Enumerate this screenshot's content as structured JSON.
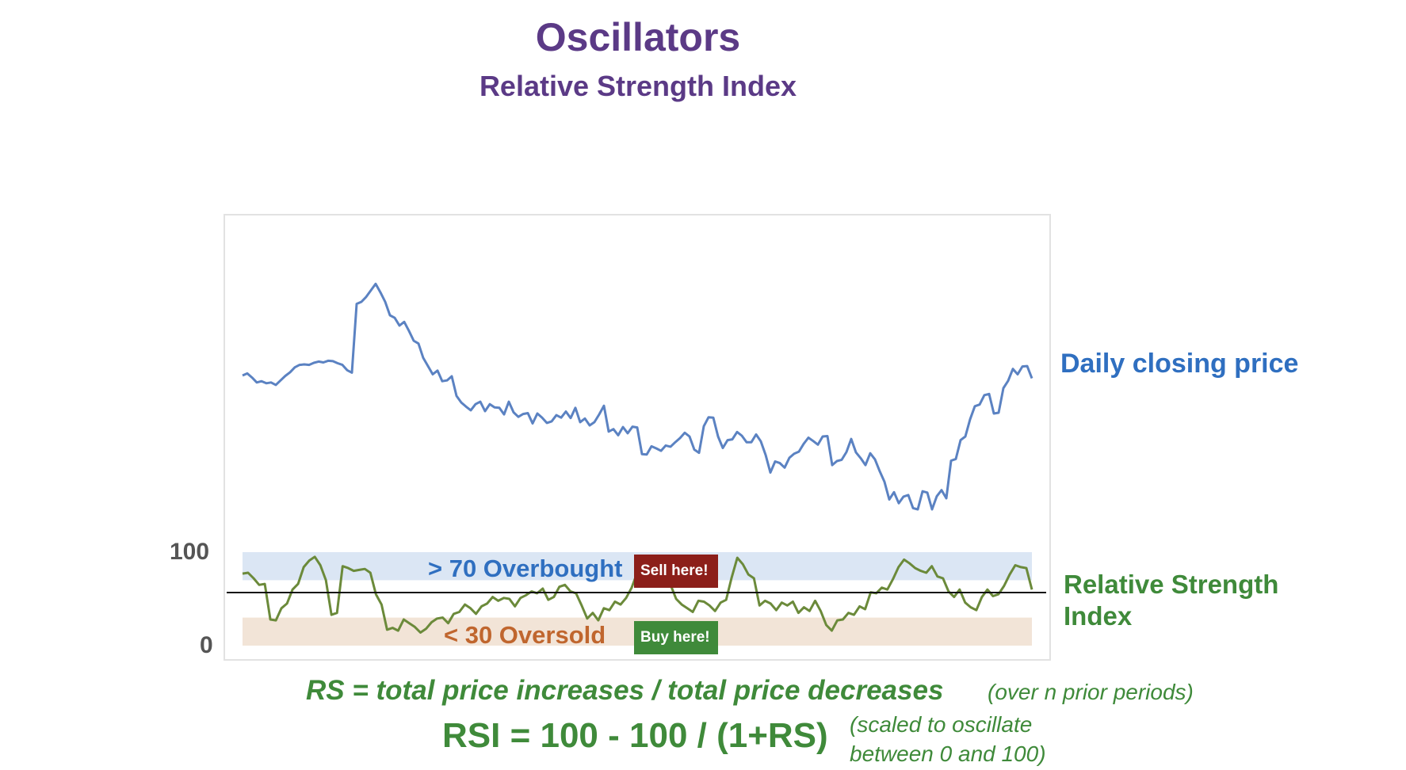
{
  "title": "Oscillators",
  "subtitle": "Relative Strength Index",
  "labels": {
    "price_series": "Daily closing price",
    "rsi_series": "Relative Strength Index",
    "rsi_tick_high": "100",
    "rsi_tick_low": "0",
    "overbought": "> 70 Overbought",
    "oversold": "< 30 Oversold",
    "sell": "Sell here!",
    "buy": "Buy here!"
  },
  "formulas": {
    "rs": "RS = total price increases / total price decreases",
    "rs_note": "(over n prior periods)",
    "rsi": "RSI = 100 - 100 / (1+RS)",
    "rsi_note_line1": "(scaled to oscillate",
    "rsi_note_line2": "between 0 and 100)"
  },
  "colors": {
    "title": "#5b3a86",
    "price_line": "#5b82c2",
    "rsi_line": "#6b8a3a",
    "overbought_band": "#dbe6f4",
    "oversold_band": "#f2e4d7",
    "sell_badge": "#8c1f1a",
    "buy_badge": "#3f8a3a"
  },
  "chart_data": [
    {
      "type": "line",
      "series": [
        {
          "name": "Daily closing price",
          "values": [
            66,
            66.5,
            65.5,
            64.3,
            64.6,
            64.1,
            64.3,
            63.7,
            64.8,
            65.9,
            66.8,
            68,
            68.6,
            68.7,
            68.6,
            69.1,
            69.4,
            69.2,
            69.6,
            69.5,
            69,
            68.6,
            67.3,
            66.7,
            83.5,
            84,
            85.2,
            86.8,
            88.4,
            86.3,
            84,
            80.7,
            80.1,
            78.2,
            79.1,
            76.9,
            74.5,
            73.8,
            70.3,
            68.3,
            66.3,
            67.2,
            64.6,
            64.8,
            65.8,
            61,
            59.4,
            58.4,
            57.5,
            59,
            59.6,
            57.3,
            59,
            58.2,
            58.1,
            56.5,
            59.6,
            57,
            55.9,
            56.6,
            56.8,
            54.3,
            56.7,
            55.7,
            54.4,
            54.8,
            56.3,
            55.7,
            57.2,
            55.6,
            58.1,
            54.6,
            55.5,
            53.8,
            54.6,
            56.5,
            58.6,
            52.3,
            52.9,
            51.4,
            53.4,
            51.9,
            53.5,
            53.3,
            46.8,
            46.7,
            48.7,
            48.2,
            47.6,
            48.9,
            48.6,
            49.7,
            50.7,
            52,
            51.1,
            47.9,
            47.1,
            53.6,
            55.8,
            55.7,
            51.1,
            48.3,
            50.2,
            50.4,
            52.2,
            51.3,
            49.7,
            49.7,
            51.6,
            49.9,
            46.6,
            42.3,
            45,
            44.6,
            43.5,
            45.9,
            46.9,
            47.4,
            49.3,
            50.8,
            50,
            49.1,
            51.1,
            51.2,
            44.1,
            45.1,
            45.4,
            47.3,
            50.5,
            47.2,
            45.8,
            44.1,
            47,
            45.5,
            42.6,
            40,
            35.7,
            37.5,
            34.8,
            36.4,
            36.8,
            33.6,
            33.3,
            37.7,
            37.4,
            33.3,
            36.5,
            38,
            36,
            45.2,
            45.6,
            50.2,
            51.1,
            55.3,
            58.5,
            58.9,
            61.2,
            61.5,
            56.7,
            56.9,
            62.9,
            64.7,
            67.6,
            66.3,
            68.2,
            68.3,
            65.3
          ]
        }
      ]
    },
    {
      "type": "line",
      "title": "Relative Strength Index",
      "ylim": [
        0,
        100
      ],
      "y_ticks": [
        0,
        100
      ],
      "bands": [
        {
          "label": "> 70 Overbought",
          "from": 70,
          "to": 100
        },
        {
          "label": "< 30 Oversold",
          "from": 0,
          "to": 30
        }
      ],
      "midline": 50,
      "series": [
        {
          "name": "Relative Strength Index",
          "values": [
            77,
            78,
            72,
            65,
            66,
            28,
            27,
            40,
            45,
            60,
            66,
            84,
            91,
            95,
            86,
            70,
            33,
            35,
            85,
            83,
            80,
            81,
            82,
            78,
            55,
            44,
            17,
            19,
            16,
            28,
            24,
            20,
            14,
            18,
            25,
            29,
            30,
            24,
            34,
            36,
            44,
            40,
            34,
            42,
            45,
            52,
            48,
            51,
            50,
            42,
            51,
            54,
            58,
            56,
            61,
            49,
            52,
            63,
            65,
            58,
            56,
            43,
            29,
            35,
            27,
            40,
            38,
            47,
            44,
            51,
            62,
            78,
            88,
            84,
            74,
            72,
            68,
            65,
            50,
            44,
            40,
            36,
            48,
            47,
            43,
            37,
            46,
            49,
            73,
            94,
            87,
            76,
            72,
            43,
            48,
            45,
            38,
            46,
            43,
            47,
            35,
            41,
            37,
            48,
            37,
            22,
            16,
            27,
            28,
            35,
            33,
            42,
            39,
            57,
            56,
            62,
            60,
            71,
            84,
            92,
            88,
            83,
            80,
            78,
            85,
            74,
            72,
            58,
            52,
            60,
            46,
            41,
            38,
            52,
            60,
            53,
            55,
            64,
            76,
            86,
            84,
            83,
            60
          ]
        }
      ]
    }
  ]
}
